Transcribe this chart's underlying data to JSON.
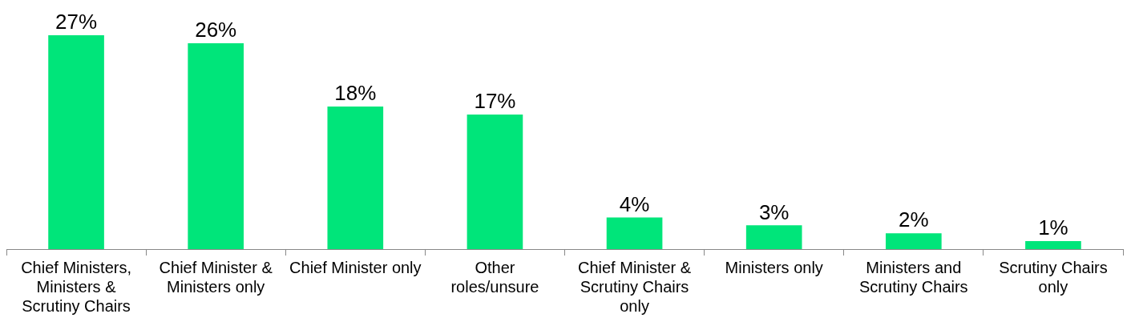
{
  "chart_data": {
    "type": "bar",
    "categories": [
      "Chief Ministers, Ministers & Scrutiny Chairs",
      "Chief Minister & Ministers only",
      "Chief Minister only",
      "Other roles/unsure",
      "Chief Minister & Scrutiny Chairs only",
      "Ministers only",
      "Ministers and Scrutiny Chairs",
      "Scrutiny Chairs only"
    ],
    "values": [
      27,
      26,
      18,
      17,
      4,
      3,
      2,
      1
    ],
    "value_labels": [
      "27%",
      "26%",
      "18%",
      "17%",
      "4%",
      "3%",
      "2%",
      "1%"
    ],
    "color": "#00e57a",
    "grid": false,
    "legend": false,
    "tick_labels": "x"
  }
}
